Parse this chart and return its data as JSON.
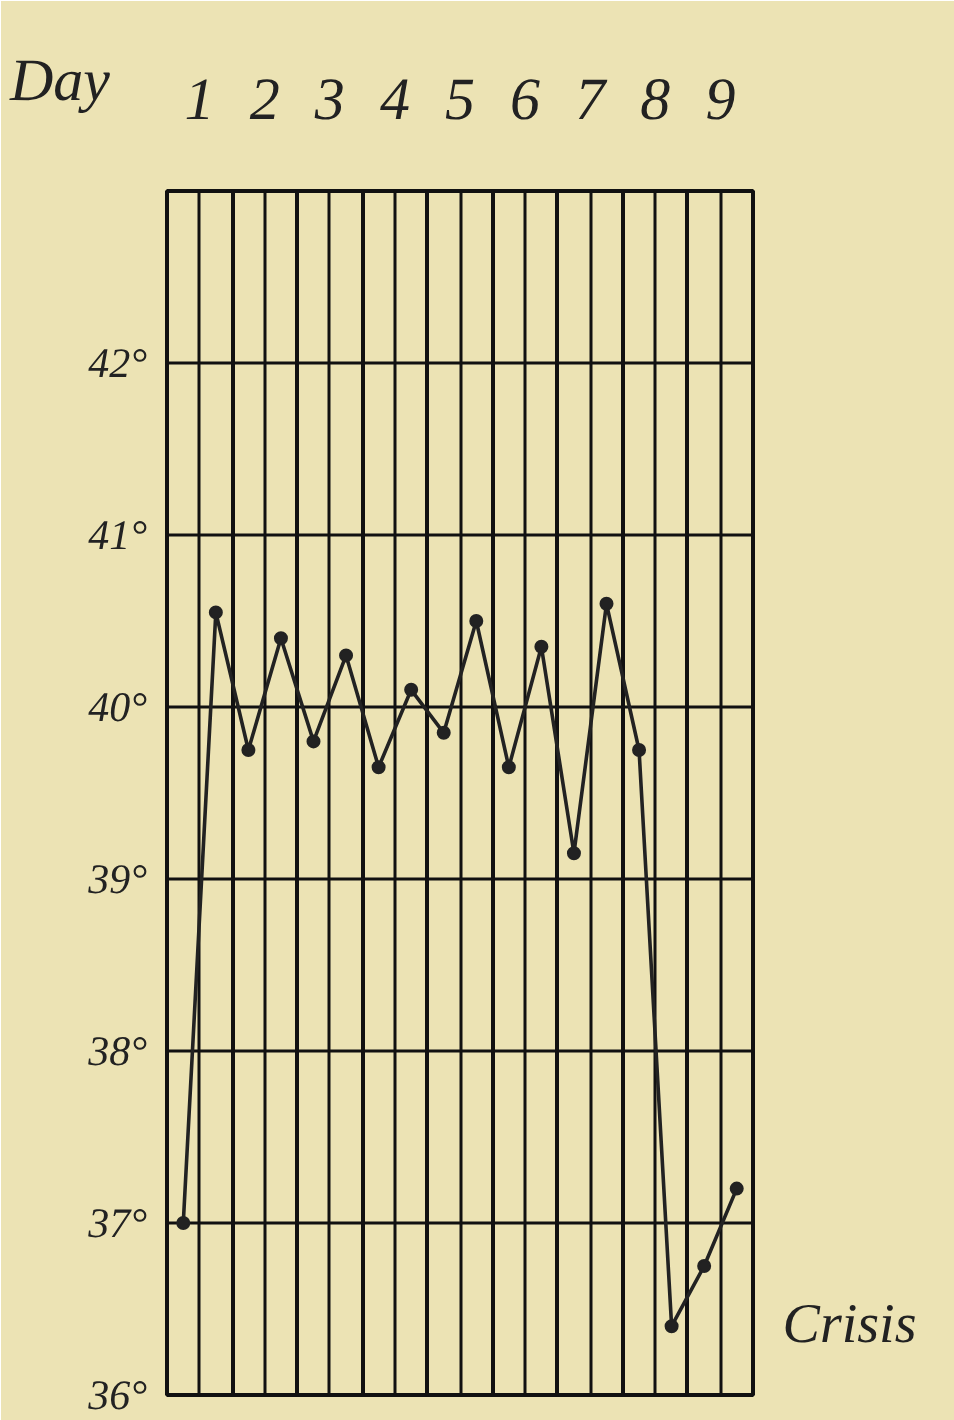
{
  "chart_data": {
    "type": "line",
    "xlabel": "Day",
    "x": [
      0.25,
      0.75,
      1.25,
      1.75,
      2.25,
      2.75,
      3.25,
      3.75,
      4.25,
      4.75,
      5.25,
      5.75,
      6.25,
      6.75,
      7.25,
      7.75,
      8.25,
      8.75
    ],
    "series": [
      {
        "color": "#222222",
        "values": [
          37.0,
          40.55,
          39.75,
          40.4,
          39.8,
          40.3,
          39.65,
          40.1,
          39.85,
          40.5,
          39.65,
          40.35,
          39.15,
          40.6,
          39.75,
          36.4,
          36.75,
          37.2
        ]
      }
    ],
    "xlim": [
      0,
      9
    ],
    "xticks": [
      {
        "value": 0.5,
        "label": "1"
      },
      {
        "value": 1.5,
        "label": "2"
      },
      {
        "value": 2.5,
        "label": "3"
      },
      {
        "value": 3.5,
        "label": "4"
      },
      {
        "value": 4.5,
        "label": "5"
      },
      {
        "value": 5.5,
        "label": "6"
      },
      {
        "value": 6.5,
        "label": "7"
      },
      {
        "value": 7.5,
        "label": "8"
      },
      {
        "value": 8.5,
        "label": "9"
      }
    ],
    "ylim": [
      36,
      43
    ],
    "yticks": [
      {
        "value": 36,
        "label": "36°"
      },
      {
        "value": 37,
        "label": "37°"
      },
      {
        "value": 38,
        "label": "38°"
      },
      {
        "value": 39,
        "label": "39°"
      },
      {
        "value": 40,
        "label": "40°"
      },
      {
        "value": 41,
        "label": "41°"
      },
      {
        "value": 42,
        "label": "42°"
      },
      {
        "value": 43,
        "label": null
      }
    ],
    "annotations": [
      {
        "text": "Crisis",
        "x": 7.75,
        "y": 36.4
      }
    ],
    "grid": true,
    "marker": "circle",
    "line_style": "solid"
  }
}
